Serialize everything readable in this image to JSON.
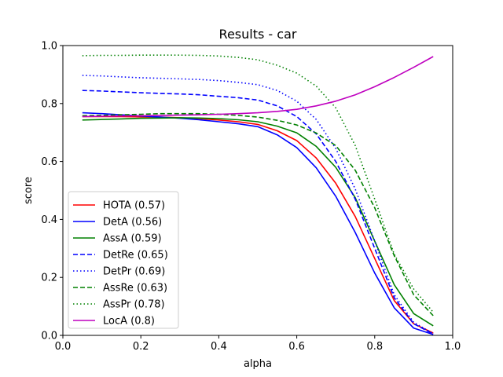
{
  "chart_data": {
    "type": "line",
    "title": "Results - car",
    "xlabel": "alpha",
    "ylabel": "score",
    "xlim": [
      0.0,
      1.0
    ],
    "ylim": [
      0.0,
      1.0
    ],
    "x_ticks": [
      "0.0",
      "0.2",
      "0.4",
      "0.6",
      "0.8",
      "1.0"
    ],
    "y_ticks": [
      "0.0",
      "0.2",
      "0.4",
      "0.6",
      "0.8",
      "1.0"
    ],
    "grid": false,
    "legend_position": "lower left",
    "x": [
      0.05,
      0.1,
      0.15,
      0.2,
      0.25,
      0.3,
      0.35,
      0.4,
      0.45,
      0.5,
      0.55,
      0.6,
      0.65,
      0.7,
      0.75,
      0.8,
      0.85,
      0.9,
      0.95
    ],
    "series": [
      {
        "name": "HOTA (0.57)",
        "color": "#ff0000",
        "style": "solid",
        "values": [
          0.755,
          0.755,
          0.755,
          0.754,
          0.753,
          0.751,
          0.748,
          0.743,
          0.737,
          0.728,
          0.706,
          0.672,
          0.612,
          0.525,
          0.41,
          0.265,
          0.12,
          0.04,
          0.008
        ]
      },
      {
        "name": "DetA (0.56)",
        "color": "#0000ff",
        "style": "solid",
        "values": [
          0.768,
          0.765,
          0.761,
          0.757,
          0.753,
          0.749,
          0.744,
          0.737,
          0.73,
          0.72,
          0.692,
          0.648,
          0.578,
          0.48,
          0.355,
          0.215,
          0.095,
          0.025,
          0.003
        ]
      },
      {
        "name": "AssA (0.59)",
        "color": "#008000",
        "style": "solid",
        "values": [
          0.743,
          0.745,
          0.747,
          0.749,
          0.75,
          0.751,
          0.75,
          0.748,
          0.744,
          0.737,
          0.722,
          0.699,
          0.652,
          0.58,
          0.475,
          0.325,
          0.175,
          0.075,
          0.033
        ]
      },
      {
        "name": "DetRe (0.65)",
        "color": "#0000ff",
        "style": "dashed",
        "values": [
          0.845,
          0.843,
          0.84,
          0.837,
          0.835,
          0.833,
          0.83,
          0.825,
          0.82,
          0.812,
          0.792,
          0.755,
          0.695,
          0.6,
          0.47,
          0.3,
          0.13,
          0.04,
          0.005
        ]
      },
      {
        "name": "DetPr (0.69)",
        "color": "#0000ff",
        "style": "dotted",
        "values": [
          0.897,
          0.895,
          0.892,
          0.889,
          0.887,
          0.885,
          0.883,
          0.879,
          0.873,
          0.865,
          0.845,
          0.808,
          0.745,
          0.645,
          0.505,
          0.325,
          0.14,
          0.045,
          0.006
        ]
      },
      {
        "name": "AssRe (0.63)",
        "color": "#008000",
        "style": "dashed",
        "values": [
          0.758,
          0.759,
          0.761,
          0.763,
          0.765,
          0.765,
          0.765,
          0.763,
          0.759,
          0.753,
          0.742,
          0.726,
          0.698,
          0.655,
          0.57,
          0.44,
          0.275,
          0.14,
          0.068
        ]
      },
      {
        "name": "AssPr (0.78)",
        "color": "#008000",
        "style": "dotted",
        "values": [
          0.965,
          0.966,
          0.966,
          0.967,
          0.967,
          0.967,
          0.966,
          0.964,
          0.959,
          0.951,
          0.932,
          0.905,
          0.86,
          0.785,
          0.655,
          0.47,
          0.28,
          0.16,
          0.08
        ]
      },
      {
        "name": "LocA (0.8)",
        "color": "#bf00bf",
        "style": "solid",
        "values": [
          0.755,
          0.756,
          0.757,
          0.758,
          0.759,
          0.76,
          0.761,
          0.763,
          0.765,
          0.768,
          0.773,
          0.78,
          0.792,
          0.808,
          0.83,
          0.858,
          0.89,
          0.925,
          0.962
        ]
      }
    ]
  }
}
